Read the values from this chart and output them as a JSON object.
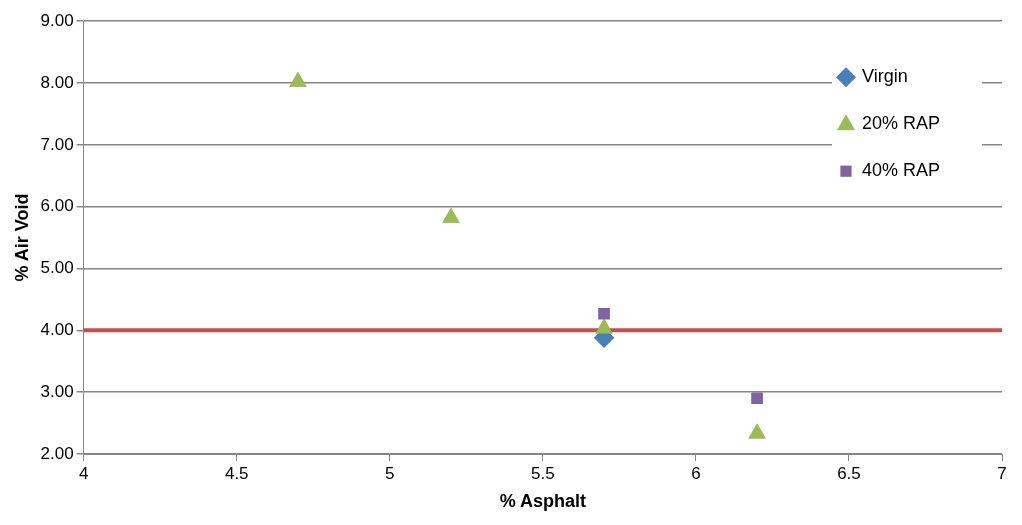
{
  "chart_data": {
    "type": "scatter",
    "xlabel": "% Asphalt",
    "ylabel": "% Air Void",
    "series": [
      {
        "name": "Virgin",
        "color": "#4a7ebb",
        "marker": "diamond",
        "x": [
          5.7
        ],
        "values": [
          3.88
        ]
      },
      {
        "name": "20% RAP",
        "color": "#9bbb59",
        "marker": "triangle",
        "x": [
          4.7,
          5.2,
          5.7,
          6.2
        ],
        "values": [
          8.02,
          5.82,
          4.03,
          2.33
        ]
      },
      {
        "name": "40% RAP",
        "color": "#8064a2",
        "marker": "square",
        "x": [
          5.7,
          6.2
        ],
        "values": [
          4.27,
          2.9
        ]
      }
    ],
    "xlim": [
      4,
      7
    ],
    "xticks": [
      4,
      4.5,
      5,
      5.5,
      6,
      6.5,
      7
    ],
    "ylim": [
      2,
      9
    ],
    "yticks": [
      {
        "value": 2,
        "label": "2.00"
      },
      {
        "value": 3,
        "label": "3.00"
      },
      {
        "value": 4,
        "label": "4.00"
      },
      {
        "value": 5,
        "label": "5.00"
      },
      {
        "value": 6,
        "label": "6.00"
      },
      {
        "value": 7,
        "label": "7.00"
      },
      {
        "value": 8,
        "label": "8.00"
      },
      {
        "value": 9,
        "label": "9.00"
      }
    ],
    "ref_lines": [
      {
        "axis": "y",
        "value": 4,
        "color": "#c0504d",
        "line_style": "solid"
      }
    ],
    "grid": "y",
    "legend": "top right"
  }
}
